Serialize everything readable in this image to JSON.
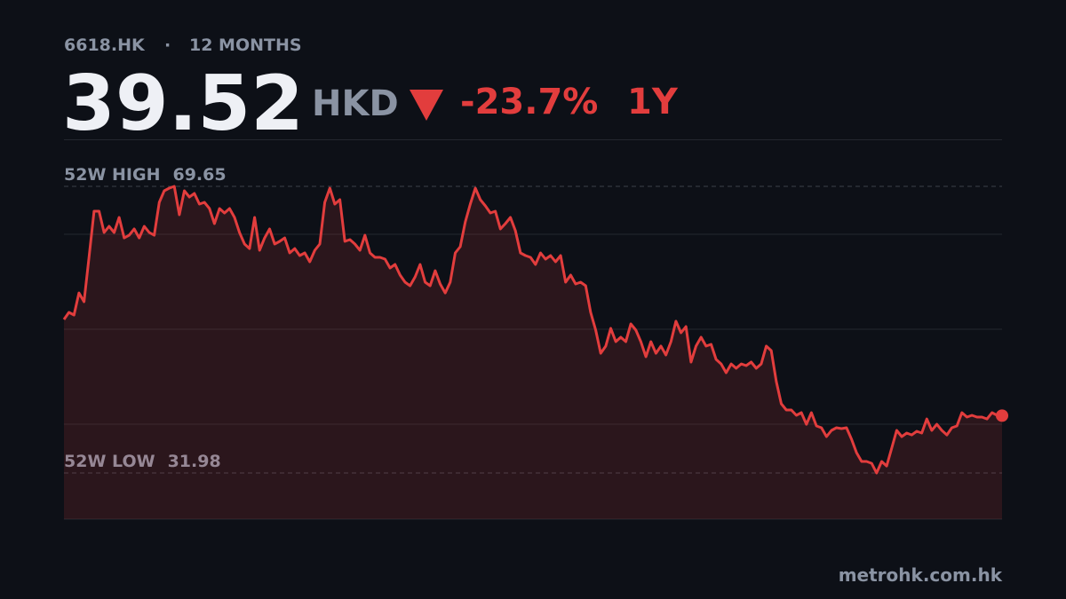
{
  "header": {
    "ticker": "6618.HK",
    "separator": "·",
    "period": "12 MONTHS",
    "price": "39.52",
    "currency": "HKD",
    "change": "-23.7%",
    "range": "1Y"
  },
  "chart_data": {
    "type": "area",
    "color": "#e23d3d",
    "ylim": [
      25.92,
      75.83
    ],
    "values": [
      52.16,
      53.09,
      52.74,
      55.65,
      54.49,
      60.32,
      66.38,
      66.38,
      63.58,
      64.4,
      63.58,
      65.57,
      62.88,
      63.23,
      64.05,
      62.88,
      64.4,
      63.58,
      63.23,
      67.55,
      69.07,
      69.42,
      69.65,
      65.92,
      69.07,
      68.25,
      68.72,
      67.32,
      67.55,
      66.73,
      64.75,
      66.73,
      66.15,
      66.73,
      65.57,
      63.58,
      62.07,
      61.48,
      65.57,
      61.25,
      62.88,
      64.05,
      62.07,
      62.42,
      62.88,
      60.9,
      61.48,
      60.55,
      60.9,
      59.74,
      61.25,
      62.07,
      67.55,
      69.42,
      67.32,
      67.9,
      62.42,
      62.65,
      62.07,
      61.25,
      63.23,
      60.9,
      60.32,
      60.32,
      60.09,
      58.92,
      59.39,
      57.99,
      57.05,
      56.59,
      57.75,
      59.39,
      57.05,
      56.59,
      58.57,
      56.82,
      55.65,
      57.05,
      60.9,
      61.72,
      64.98,
      67.32,
      69.42,
      67.9,
      67.08,
      66.15,
      66.38,
      64.05,
      64.75,
      65.57,
      63.82,
      60.9,
      60.55,
      60.32,
      59.39,
      60.9,
      60.09,
      60.55,
      59.74,
      60.55,
      57.05,
      57.99,
      56.82,
      57.05,
      56.59,
      53.09,
      50.76,
      47.72,
      48.66,
      50.99,
      49.24,
      49.82,
      49.24,
      51.57,
      50.76,
      49.24,
      47.26,
      49.24,
      47.72,
      48.66,
      47.49,
      49.24,
      51.92,
      50.41,
      51.22,
      46.56,
      48.66,
      49.82,
      48.66,
      48.89,
      46.91,
      46.32,
      45.16,
      46.32,
      45.74,
      46.32,
      46.09,
      46.56,
      45.74,
      46.32,
      48.66,
      48.07,
      43.99,
      41.08,
      40.26,
      40.26,
      39.56,
      39.91,
      38.39,
      39.91,
      38.16,
      37.93,
      36.76,
      37.58,
      37.93,
      37.81,
      37.93,
      36.41,
      34.66,
      33.5,
      33.5,
      33.26,
      31.98,
      33.5,
      32.91,
      35.25,
      37.58,
      36.76,
      37.23,
      36.99,
      37.46,
      37.23,
      39.09,
      37.58,
      38.39,
      37.58,
      36.99,
      37.93,
      38.16,
      39.91,
      39.33,
      39.56,
      39.33,
      39.33,
      39.09,
      39.91,
      39.56,
      39.52
    ],
    "reference_lines": [
      {
        "label": "52W HIGH",
        "value": 69.65
      },
      {
        "label": "52W LOW",
        "value": 31.98
      }
    ]
  },
  "footer": {
    "source": "metrohk.com.hk"
  }
}
